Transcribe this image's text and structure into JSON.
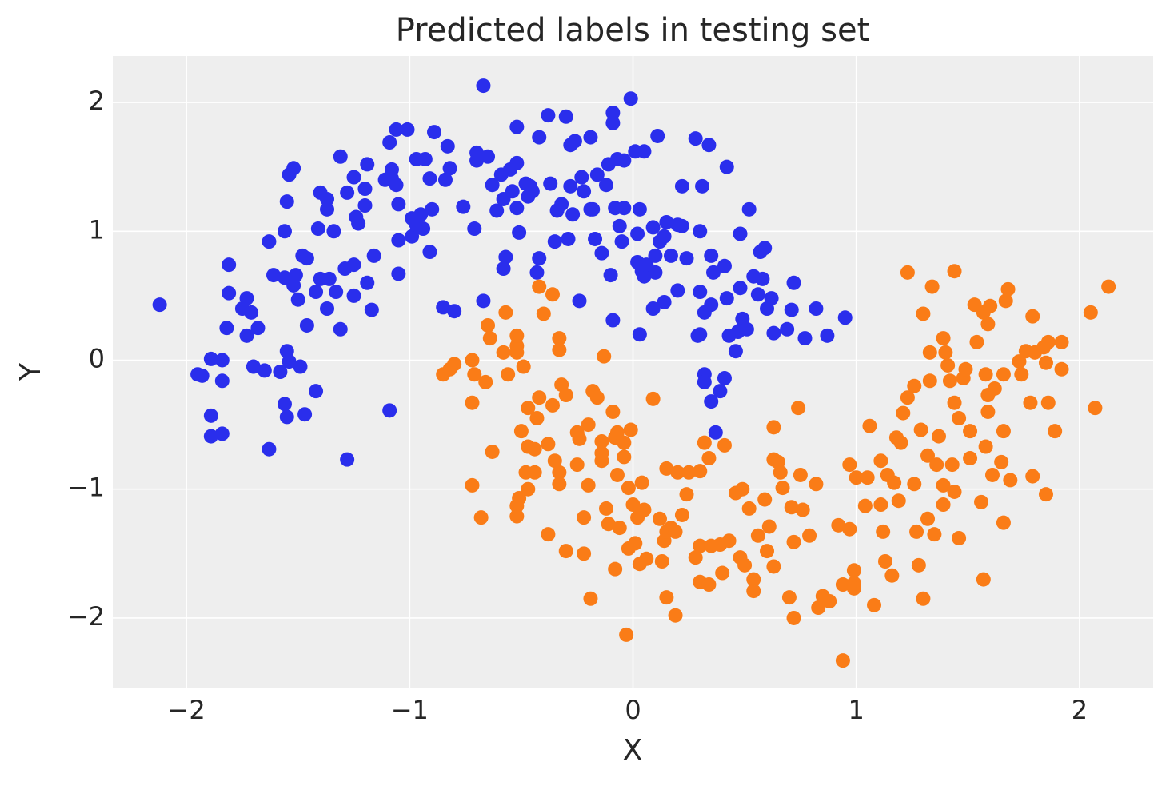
{
  "chart_data": {
    "type": "scatter",
    "title": "Predicted labels in testing set",
    "x_label": "X",
    "y_label": "Y",
    "xlim": [
      -2.33,
      2.33
    ],
    "ylim": [
      -2.54,
      2.36
    ],
    "xticks": [
      {
        "value": -2,
        "label": "−2"
      },
      {
        "value": -1,
        "label": "−1"
      },
      0,
      1,
      2
    ],
    "yticks": [
      {
        "value": -2,
        "label": "−2"
      },
      {
        "value": -1,
        "label": "−1"
      },
      0,
      1,
      2
    ],
    "grid": true,
    "series": [
      {
        "color": "#2a2eec",
        "x": [
          -2.12,
          -1.95,
          -1.93,
          -1.89,
          -1.84,
          -1.84,
          -1.89,
          -1.89,
          -1.84,
          -1.82,
          -1.81,
          -1.81,
          -1.75,
          -1.73,
          -1.71,
          -1.73,
          -1.68,
          -1.7,
          -1.65,
          -1.63,
          -1.61,
          -1.63,
          -1.58,
          -1.56,
          -1.55,
          -1.56,
          -1.55,
          -1.54,
          -1.52,
          -1.56,
          -1.52,
          -1.51,
          -1.55,
          -1.54,
          -1.49,
          -1.5,
          -1.48,
          -1.46,
          -1.47,
          -1.46,
          -1.42,
          -1.41,
          -1.42,
          -1.4,
          -1.37,
          -1.37,
          -1.4,
          -1.36,
          -1.34,
          -1.37,
          -1.33,
          -1.31,
          -1.31,
          -1.29,
          -1.28,
          -1.28,
          -1.25,
          -1.24,
          -1.25,
          -1.25,
          -1.23,
          -1.2,
          -1.2,
          -1.19,
          -1.19,
          -1.17,
          -1.16,
          -1.11,
          -1.09,
          -1.09,
          -1.08,
          -1.08,
          -1.06,
          -1.06,
          -1.05,
          -1.05,
          -1.05,
          -1.01,
          -0.99,
          -0.99,
          -0.97,
          -0.93,
          -0.97,
          -0.95,
          -0.94,
          -0.91,
          -0.91,
          -0.9,
          -0.89,
          -0.84,
          -0.83,
          -0.82,
          -0.85,
          -0.8,
          -0.76,
          -0.7,
          -0.7,
          -0.65,
          -0.71,
          -0.67,
          -0.67,
          -0.63,
          -0.61,
          -0.59,
          -0.57,
          -0.58,
          -0.58,
          -0.55,
          -0.54,
          -0.52,
          -0.52,
          -0.51,
          -0.52,
          -0.48,
          -0.47,
          -0.46,
          -0.45,
          -0.43,
          -0.42,
          -0.42,
          -0.38,
          -0.37,
          -0.34,
          -0.35,
          -0.32,
          -0.3,
          -0.29,
          -0.28,
          -0.28,
          -0.27,
          -0.26,
          -0.24,
          -0.23,
          -0.22,
          -0.19,
          -0.19,
          -0.18,
          -0.17,
          -0.16,
          -0.14,
          -0.12,
          -0.11,
          -0.1,
          -0.09,
          -0.09,
          -0.09,
          -0.08,
          -0.07,
          -0.06,
          -0.05,
          -0.04,
          -0.04,
          -0.01,
          0.01,
          0.02,
          0.02,
          0.03,
          0.03,
          0.04,
          0.05,
          0.05,
          0.06,
          0.09,
          0.09,
          0.1,
          0.1,
          0.11,
          0.12,
          0.14,
          0.14,
          0.15,
          0.17,
          0.2,
          0.2,
          0.22,
          0.22,
          0.24,
          0.28,
          0.29,
          0.3,
          0.3,
          0.3,
          0.31,
          0.32,
          0.32,
          0.32,
          0.34,
          0.35,
          0.35,
          0.35,
          0.36,
          0.37,
          0.39,
          0.41,
          0.41,
          0.42,
          0.42,
          0.43,
          0.46,
          0.47,
          0.48,
          0.48,
          0.49,
          0.49,
          0.51,
          0.52,
          0.54,
          0.56,
          0.57,
          0.58,
          0.59,
          0.6,
          0.62,
          0.63,
          0.69,
          0.71,
          0.72,
          0.77,
          0.82,
          0.87,
          0.95
        ],
        "values": [
          0.43,
          -0.11,
          -0.12,
          0.01,
          0.0,
          -0.16,
          -0.43,
          -0.59,
          -0.57,
          0.25,
          0.52,
          0.74,
          0.4,
          0.48,
          0.37,
          0.19,
          0.25,
          -0.05,
          -0.08,
          0.92,
          0.66,
          -0.69,
          -0.09,
          -0.34,
          -0.44,
          1.0,
          1.23,
          1.44,
          1.49,
          0.64,
          0.58,
          0.66,
          0.07,
          -0.01,
          -0.05,
          0.47,
          0.81,
          0.79,
          -0.42,
          0.27,
          -0.24,
          1.02,
          0.53,
          1.3,
          1.25,
          1.17,
          0.63,
          0.63,
          1.0,
          0.4,
          0.53,
          1.58,
          0.24,
          0.71,
          -0.77,
          1.3,
          1.42,
          1.11,
          0.5,
          0.74,
          1.06,
          1.2,
          1.33,
          1.52,
          0.6,
          0.39,
          0.81,
          1.4,
          1.69,
          -0.39,
          1.48,
          1.41,
          1.36,
          1.79,
          0.93,
          0.67,
          1.21,
          1.79,
          1.1,
          0.96,
          1.56,
          1.56,
          1.05,
          1.13,
          1.02,
          0.84,
          1.41,
          1.17,
          1.77,
          1.4,
          1.66,
          1.49,
          0.41,
          0.38,
          1.19,
          1.61,
          1.55,
          1.58,
          1.02,
          0.46,
          2.13,
          1.36,
          1.16,
          1.44,
          0.8,
          0.71,
          1.25,
          1.48,
          1.31,
          1.81,
          1.18,
          0.99,
          1.53,
          1.37,
          1.27,
          1.35,
          1.31,
          0.68,
          0.79,
          1.73,
          1.9,
          1.37,
          1.16,
          0.92,
          1.21,
          1.89,
          0.94,
          1.67,
          1.35,
          1.13,
          1.7,
          0.46,
          1.42,
          1.31,
          1.17,
          1.73,
          1.17,
          0.94,
          1.44,
          0.83,
          1.36,
          1.52,
          0.66,
          1.92,
          1.84,
          0.31,
          1.18,
          1.56,
          1.04,
          0.92,
          1.18,
          1.55,
          2.03,
          1.62,
          0.98,
          0.76,
          0.2,
          1.17,
          0.69,
          0.65,
          1.62,
          0.74,
          1.03,
          0.4,
          0.81,
          0.68,
          1.74,
          0.92,
          0.45,
          0.96,
          1.07,
          0.81,
          1.05,
          0.54,
          1.04,
          1.35,
          0.79,
          1.72,
          0.19,
          1.0,
          0.53,
          0.2,
          1.35,
          -0.11,
          -0.17,
          0.37,
          1.67,
          0.43,
          -0.32,
          0.81,
          0.68,
          -0.56,
          -0.24,
          -0.14,
          0.73,
          0.48,
          1.5,
          0.19,
          0.07,
          0.22,
          0.98,
          0.56,
          0.32,
          0.25,
          0.24,
          1.17,
          0.65,
          0.51,
          0.84,
          0.63,
          0.87,
          0.4,
          0.48,
          0.21,
          0.24,
          0.39,
          0.6,
          0.17,
          0.4,
          0.19,
          0.33
        ]
      },
      {
        "color": "#fa7c17",
        "x": [
          -0.85,
          -0.82,
          -0.8,
          -0.72,
          -0.72,
          -0.72,
          -0.71,
          -0.68,
          -0.66,
          -0.65,
          -0.64,
          -0.63,
          -0.58,
          -0.57,
          -0.56,
          -0.52,
          -0.52,
          -0.52,
          -0.52,
          -0.52,
          -0.51,
          -0.5,
          -0.49,
          -0.48,
          -0.47,
          -0.47,
          -0.47,
          -0.44,
          -0.44,
          -0.43,
          -0.42,
          -0.42,
          -0.4,
          -0.38,
          -0.38,
          -0.36,
          -0.36,
          -0.35,
          -0.33,
          -0.33,
          -0.33,
          -0.33,
          -0.32,
          -0.3,
          -0.3,
          -0.25,
          -0.25,
          -0.24,
          -0.22,
          -0.22,
          -0.2,
          -0.2,
          -0.19,
          -0.18,
          -0.16,
          -0.14,
          -0.14,
          -0.14,
          -0.13,
          -0.12,
          -0.11,
          -0.09,
          -0.08,
          -0.08,
          -0.07,
          -0.07,
          -0.06,
          -0.04,
          -0.04,
          -0.03,
          -0.02,
          -0.02,
          -0.01,
          0.0,
          0.01,
          0.02,
          0.03,
          0.04,
          0.05,
          0.06,
          0.09,
          0.12,
          0.13,
          0.14,
          0.15,
          0.15,
          0.15,
          0.17,
          0.19,
          0.2,
          0.19,
          0.22,
          0.24,
          0.25,
          0.28,
          0.3,
          0.3,
          0.3,
          0.32,
          0.34,
          0.34,
          0.35,
          0.39,
          0.4,
          0.41,
          0.43,
          0.46,
          0.48,
          0.49,
          0.5,
          0.52,
          0.54,
          0.54,
          0.56,
          0.59,
          0.6,
          0.61,
          0.63,
          0.63,
          0.63,
          0.65,
          0.66,
          0.67,
          0.7,
          0.71,
          0.72,
          0.72,
          0.74,
          0.75,
          0.76,
          0.79,
          0.82,
          0.83,
          0.85,
          0.88,
          0.92,
          0.94,
          0.94,
          0.97,
          0.97,
          0.99,
          1.0,
          0.99,
          0.99,
          1.04,
          1.05,
          1.06,
          1.08,
          1.11,
          1.11,
          1.12,
          1.13,
          1.14,
          1.16,
          1.17,
          1.18,
          1.19,
          1.2,
          1.21,
          1.23,
          1.23,
          1.26,
          1.26,
          1.27,
          1.28,
          1.29,
          1.3,
          1.3,
          1.32,
          1.32,
          1.33,
          1.33,
          1.34,
          1.35,
          1.36,
          1.37,
          1.39,
          1.39,
          1.39,
          1.4,
          1.41,
          1.42,
          1.43,
          1.44,
          1.44,
          1.44,
          1.46,
          1.46,
          1.48,
          1.49,
          1.51,
          1.51,
          1.53,
          1.54,
          1.56,
          1.57,
          1.57,
          1.58,
          1.58,
          1.59,
          1.59,
          1.59,
          1.6,
          1.61,
          1.62,
          1.65,
          1.66,
          1.66,
          1.66,
          1.67,
          1.68,
          1.69,
          1.73,
          1.74,
          1.76,
          1.78,
          1.79,
          1.79,
          1.8,
          1.84,
          1.85,
          1.85,
          1.86,
          1.86,
          1.89,
          1.92,
          1.92,
          2.05,
          2.07,
          2.13
        ],
        "values": [
          -0.11,
          -0.07,
          -0.03,
          0.0,
          -0.33,
          -0.97,
          -0.11,
          -1.22,
          -0.17,
          0.27,
          0.17,
          -0.71,
          0.06,
          0.37,
          -0.11,
          0.11,
          0.19,
          0.06,
          -1.13,
          -1.21,
          -1.07,
          -0.55,
          -0.05,
          -0.87,
          -0.37,
          -1.0,
          -0.67,
          -0.69,
          -0.87,
          -0.45,
          0.57,
          -0.29,
          0.36,
          -1.35,
          -0.65,
          0.51,
          -0.35,
          -0.78,
          0.17,
          -0.87,
          -0.96,
          0.08,
          -0.19,
          -0.27,
          -1.48,
          -0.81,
          -0.56,
          -0.61,
          -1.22,
          -1.5,
          -0.5,
          -0.97,
          -1.85,
          -0.24,
          -0.29,
          -0.63,
          -0.72,
          -0.78,
          0.03,
          -1.15,
          -1.27,
          -0.4,
          -0.6,
          -1.62,
          -0.56,
          -0.89,
          -1.3,
          -0.75,
          -0.64,
          -2.13,
          -0.99,
          -1.46,
          -0.54,
          -1.12,
          -1.42,
          -1.22,
          -1.58,
          -0.95,
          -1.16,
          -1.54,
          -0.3,
          -1.23,
          -1.56,
          -1.4,
          -0.84,
          -1.84,
          -1.33,
          -1.3,
          -1.98,
          -0.87,
          -1.33,
          -1.2,
          -1.04,
          -0.87,
          -1.53,
          -0.86,
          -1.72,
          -1.44,
          -0.64,
          -0.76,
          -1.74,
          -1.44,
          -1.43,
          -1.65,
          -0.66,
          -1.4,
          -1.03,
          -1.53,
          -1.0,
          -1.59,
          -1.15,
          -1.7,
          -1.79,
          -1.36,
          -1.08,
          -1.48,
          -1.29,
          -1.6,
          -0.52,
          -0.77,
          -0.79,
          -0.87,
          -0.99,
          -1.84,
          -1.14,
          -1.41,
          -2.0,
          -0.37,
          -0.89,
          -1.16,
          -1.36,
          -0.96,
          -1.92,
          -1.83,
          -1.87,
          -1.28,
          -1.74,
          -2.33,
          -0.81,
          -1.31,
          -1.63,
          -0.91,
          -1.73,
          -1.77,
          -1.13,
          -0.91,
          -0.51,
          -1.9,
          -1.12,
          -0.78,
          -1.33,
          -1.56,
          -0.89,
          -1.67,
          -0.95,
          -0.6,
          -1.09,
          -0.64,
          -0.41,
          -0.29,
          0.68,
          -0.96,
          -0.2,
          -1.33,
          -1.59,
          -0.54,
          -1.85,
          0.36,
          -1.23,
          -0.74,
          -0.16,
          0.06,
          0.57,
          -1.35,
          -0.81,
          -0.59,
          0.17,
          -0.97,
          -1.12,
          0.06,
          -0.04,
          -0.16,
          -0.81,
          0.69,
          -1.02,
          -0.33,
          -1.38,
          -0.45,
          -0.14,
          -0.07,
          -0.55,
          -0.76,
          0.43,
          0.14,
          -1.1,
          0.37,
          -1.7,
          -0.11,
          -0.67,
          0.28,
          -0.27,
          -0.4,
          0.42,
          -0.89,
          -0.22,
          -0.79,
          -0.11,
          -0.55,
          -1.26,
          0.46,
          0.55,
          -0.93,
          -0.01,
          -0.11,
          0.07,
          -0.33,
          0.34,
          -0.9,
          0.06,
          0.1,
          -0.02,
          -1.04,
          0.14,
          -0.33,
          -0.55,
          0.14,
          -0.07,
          0.37,
          -0.37,
          0.57
        ]
      }
    ]
  }
}
